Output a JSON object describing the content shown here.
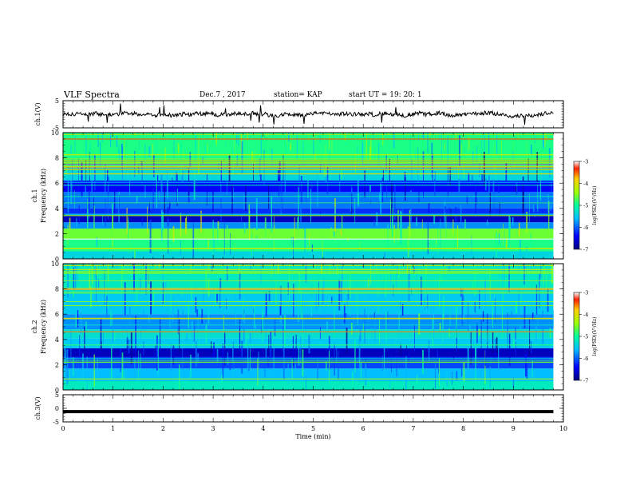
{
  "header": {
    "title": "VLF Spectra",
    "date": "Dec.7 , 2017",
    "station": "station= KAP",
    "start": "start UT =   19: 20: 1"
  },
  "chart_data": [
    {
      "type": "line",
      "name": "ch1-waveform",
      "ylabel": "ch.1(V)",
      "ylim": [
        -5,
        5
      ],
      "yticks": [
        "5",
        "-5"
      ],
      "xlim": [
        0,
        10
      ],
      "description_values": "noisy waveform centered near 0 V, amplitude ~ ±1.5 V, extends to ~9.8 min"
    },
    {
      "type": "heatmap",
      "name": "ch1-spectrogram",
      "ylabel": "ch.1 Frequency (kHz)",
      "ylim": [
        0,
        10
      ],
      "yticks": [
        "0",
        "2",
        "4",
        "6",
        "8",
        "10"
      ],
      "xlim": [
        0,
        10
      ],
      "data_extent_min": 9.8,
      "colorbar": {
        "label": "log(PSD)(V²/Hz)",
        "ticks": [
          "-3",
          "-4",
          "-5",
          "-6",
          "-7"
        ],
        "range": [
          -7,
          -3
        ]
      },
      "bands": [
        {
          "from": 0,
          "to": 0.6,
          "level": -5.4
        },
        {
          "from": 0.6,
          "to": 1.6,
          "level": -4.9
        },
        {
          "from": 1.6,
          "to": 2.4,
          "level": -4.6
        },
        {
          "from": 2.4,
          "to": 2.9,
          "level": -5.8
        },
        {
          "from": 2.9,
          "to": 3.4,
          "level": -6.7
        },
        {
          "from": 3.4,
          "to": 4.0,
          "level": -6.2
        },
        {
          "from": 4.0,
          "to": 5.3,
          "level": -5.9
        },
        {
          "from": 5.3,
          "to": 6.2,
          "level": -6.4
        },
        {
          "from": 6.2,
          "to": 7.5,
          "level": -5.4
        },
        {
          "from": 7.5,
          "to": 10.0,
          "level": -4.9
        }
      ]
    },
    {
      "type": "heatmap",
      "name": "ch2-spectrogram",
      "ylabel": "ch.2 Frequency (kHz)",
      "ylim": [
        0,
        10
      ],
      "yticks": [
        "0",
        "2",
        "4",
        "6",
        "8",
        "10"
      ],
      "xlim": [
        0,
        10
      ],
      "data_extent_min": 9.8,
      "colorbar": {
        "label": "log(PSD)(V²/Hz)",
        "ticks": [
          "-3",
          "-4",
          "-5",
          "-6",
          "-7"
        ],
        "range": [
          -7,
          -3
        ]
      },
      "bands": [
        {
          "from": 0,
          "to": 0.7,
          "level": -5.2
        },
        {
          "from": 0.7,
          "to": 1.7,
          "level": -5.6
        },
        {
          "from": 1.7,
          "to": 2.6,
          "level": -6.1
        },
        {
          "from": 2.6,
          "to": 3.3,
          "level": -6.7
        },
        {
          "from": 3.3,
          "to": 4.1,
          "level": -5.5
        },
        {
          "from": 4.1,
          "to": 4.8,
          "level": -5.3
        },
        {
          "from": 4.8,
          "to": 6.0,
          "level": -5.8
        },
        {
          "from": 6.0,
          "to": 8.0,
          "level": -5.5
        },
        {
          "from": 8.0,
          "to": 10.0,
          "level": -5.2
        }
      ]
    },
    {
      "type": "line",
      "name": "ch3-waveform",
      "ylabel": "ch.3(V)",
      "ylim": [
        -5,
        5
      ],
      "yticks": [
        "5",
        "0",
        "-5"
      ],
      "xlim": [
        0,
        10
      ],
      "constant_value": -1.2,
      "description_values": "flat thick line at about -1.2 V to ~9.8 min"
    }
  ],
  "xaxis": {
    "label": "Time (min)",
    "ticks": [
      "0",
      "1",
      "2",
      "3",
      "4",
      "5",
      "6",
      "7",
      "8",
      "9",
      "10"
    ]
  }
}
